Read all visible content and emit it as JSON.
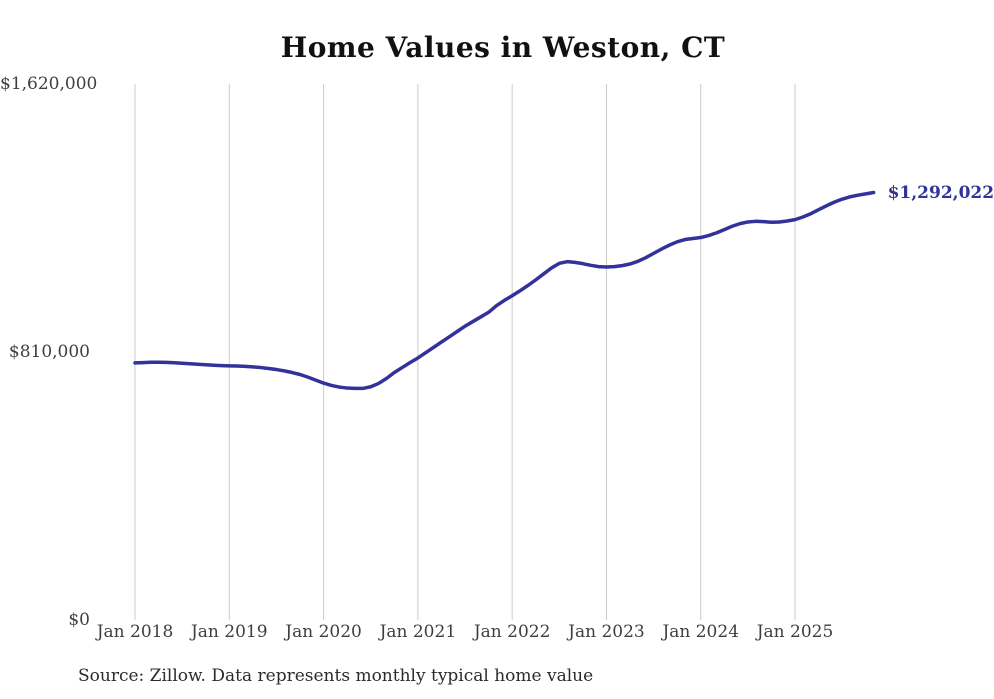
{
  "page": {
    "background_color": "#FFFFFF"
  },
  "chart_data": {
    "type": "line",
    "title": "Home Values in Weston, CT",
    "xlabel": "",
    "ylabel": "",
    "ylim": [
      0,
      1620000
    ],
    "grid": "vertical-only",
    "legend": "none",
    "x_ticks": [
      "Jan 2018",
      "Jan 2019",
      "Jan 2020",
      "Jan 2021",
      "Jan 2022",
      "Jan 2023",
      "Jan 2024",
      "Jan 2025"
    ],
    "y_ticks": [
      {
        "label": "$0",
        "value": 0
      },
      {
        "label": "$810,000",
        "value": 810000
      },
      {
        "label": "$1,620,000",
        "value": 1620000
      }
    ],
    "series": [
      {
        "name": "Typical home value",
        "frequency": "monthly",
        "start_month": "Jan 2018",
        "values": [
          777000,
          778000,
          779000,
          779000,
          778500,
          777500,
          776000,
          774500,
          773000,
          771500,
          770000,
          769000,
          768000,
          767500,
          766500,
          765000,
          763000,
          760000,
          757000,
          753000,
          748000,
          742000,
          734000,
          725000,
          716000,
          709000,
          704000,
          701000,
          700000,
          700000,
          705000,
          715000,
          730000,
          748000,
          763000,
          778000,
          792000,
          808000,
          824000,
          840000,
          856000,
          872000,
          888000,
          902000,
          916000,
          930000,
          950000,
          966000,
          980000,
          995000,
          1011000,
          1028000,
          1046000,
          1064000,
          1078000,
          1083000,
          1081000,
          1077000,
          1072000,
          1068000,
          1067000,
          1068000,
          1071000,
          1076000,
          1084000,
          1095000,
          1108000,
          1121000,
          1133000,
          1143000,
          1150000,
          1153000,
          1156000,
          1162000,
          1170000,
          1180000,
          1190000,
          1198000,
          1203000,
          1205000,
          1204000,
          1202000,
          1203000,
          1206000,
          1210000,
          1218000,
          1228000,
          1240000,
          1252000,
          1263000,
          1272000,
          1279000,
          1284000,
          1288000,
          1292022
        ]
      }
    ],
    "latest_value": 1292022,
    "end_label": "$1,292,022",
    "line_color": "#32329B",
    "end_label_color": "#32329B",
    "gridline_color": "#CCCCCC",
    "tick_label_color": "#3F3F3F"
  },
  "footer": {
    "source": "Source: Zillow. Data represents monthly typical home value"
  }
}
